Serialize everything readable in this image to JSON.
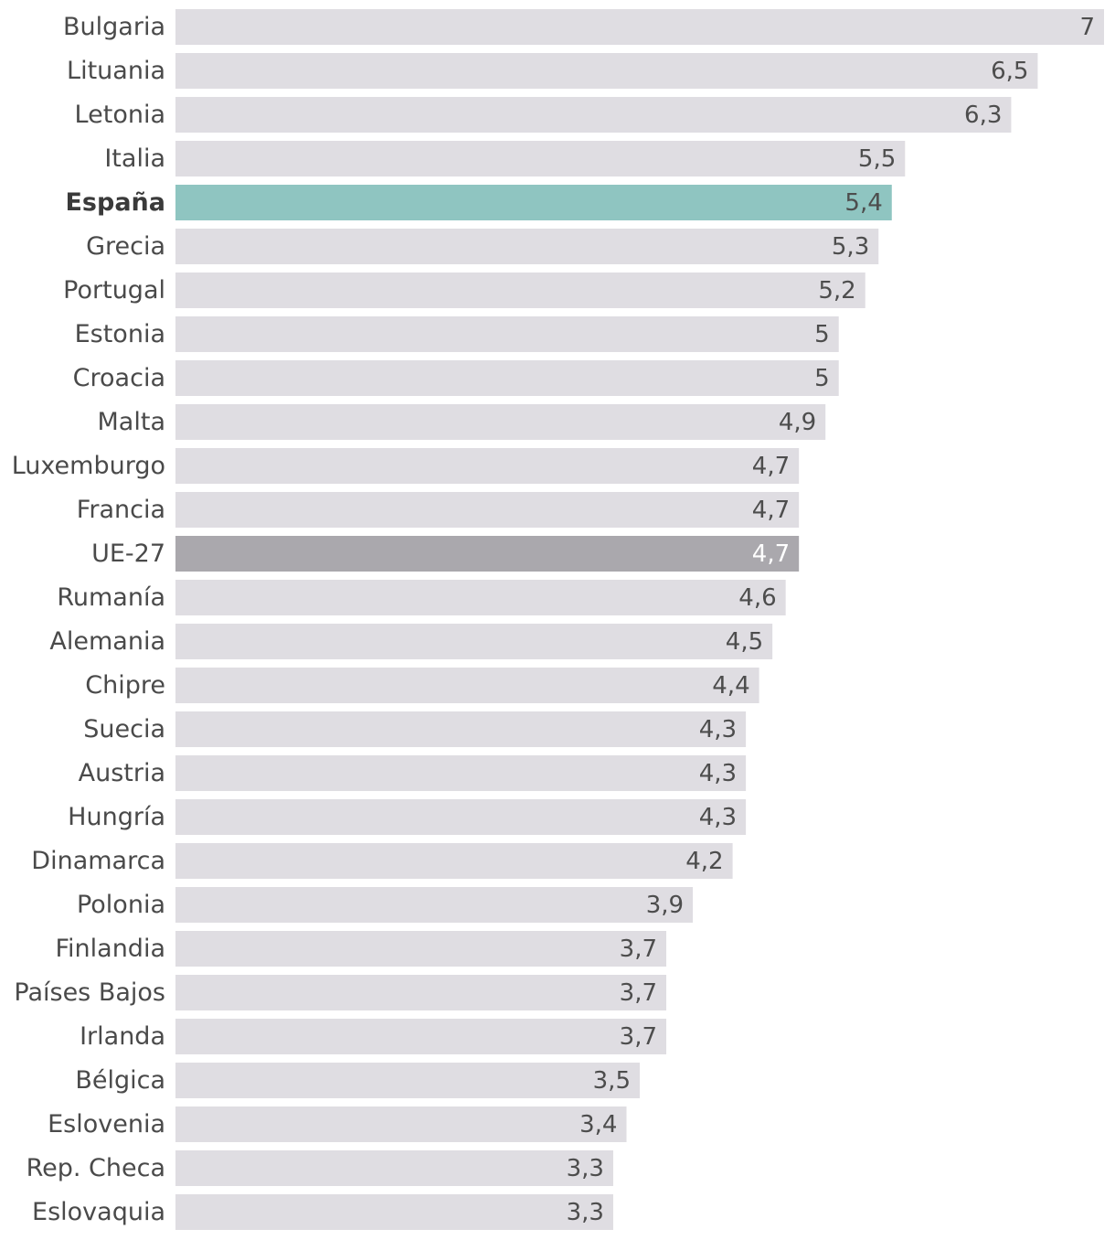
{
  "chart_data": {
    "type": "bar",
    "orientation": "horizontal",
    "title": "",
    "xlabel": "",
    "ylabel": "",
    "xlim": [
      0,
      7
    ],
    "grid": false,
    "categories": [
      "Bulgaria",
      "Lituania",
      "Letonia",
      "Italia",
      "España",
      "Grecia",
      "Portugal",
      "Estonia",
      "Croacia",
      "Malta",
      "Luxemburgo",
      "Francia",
      "UE-27",
      "Rumanía",
      "Alemania",
      "Chipre",
      "Suecia",
      "Austria",
      "Hungría",
      "Dinamarca",
      "Polonia",
      "Finlandia",
      "Países Bajos",
      "Irlanda",
      "Bélgica",
      "Eslovenia",
      "Rep. Checa",
      "Eslovaquia"
    ],
    "values": [
      7,
      6.5,
      6.3,
      5.5,
      5.4,
      5.3,
      5.2,
      5,
      5,
      4.9,
      4.7,
      4.7,
      4.7,
      4.6,
      4.5,
      4.4,
      4.3,
      4.3,
      4.3,
      4.2,
      3.9,
      3.7,
      3.7,
      3.7,
      3.5,
      3.4,
      3.3,
      3.3
    ],
    "value_labels": [
      "7",
      "6,5",
      "6,3",
      "5,5",
      "5,4",
      "5,3",
      "5,2",
      "5",
      "5",
      "4,9",
      "4,7",
      "4,7",
      "4,7",
      "4,6",
      "4,5",
      "4,4",
      "4,3",
      "4,3",
      "4,3",
      "4,2",
      "3,9",
      "3,7",
      "3,7",
      "3,7",
      "3,5",
      "3,4",
      "3,3",
      "3,3"
    ],
    "highlights": {
      "España": "country",
      "UE-27": "average"
    }
  },
  "colors": {
    "bar": "#dfdde2",
    "bar_highlight_country": "#8fc5c1",
    "bar_highlight_average": "#aaa8ad"
  }
}
